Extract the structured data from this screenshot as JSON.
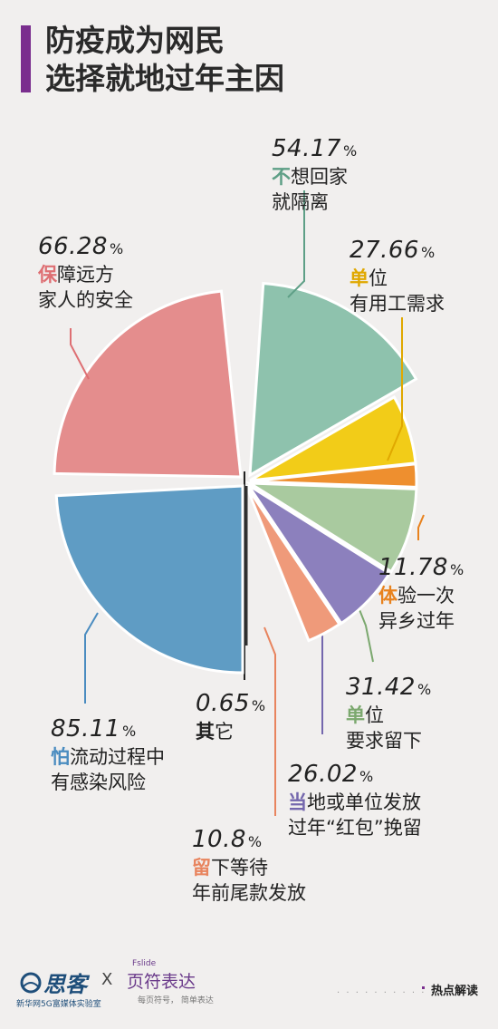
{
  "title_lines": [
    "防疫成为网民",
    "选择就地过年主因"
  ],
  "accent_color": "#7a2e8e",
  "chart_data": {
    "type": "pie",
    "title": "防疫成为网民选择就地过年主因",
    "unit": "%",
    "slices": [
      {
        "key": "s1",
        "value": "54.17",
        "num": 54.17,
        "lead": "不",
        "rest": "想回家",
        "line2": "就隔离",
        "color": "#8ec2ad",
        "lead_color": "#5e9f86"
      },
      {
        "key": "s2",
        "value": "27.66",
        "num": 27.66,
        "lead": "单",
        "rest": "位",
        "line2": "有用工需求",
        "color": "#f2cc18",
        "lead_color": "#e0a800"
      },
      {
        "key": "s3",
        "value": "11.78",
        "num": 11.78,
        "lead": "体",
        "rest": "验一次",
        "line2": "异乡过年",
        "color": "#ee8f2f",
        "lead_color": "#e8821e"
      },
      {
        "key": "s4",
        "value": "31.42",
        "num": 31.42,
        "lead": "单",
        "rest": "位",
        "line2": "要求留下",
        "color": "#a9ca9f",
        "lead_color": "#7ba86e"
      },
      {
        "key": "s5",
        "value": "26.02",
        "num": 26.02,
        "lead": "当",
        "rest": "地或单位发放",
        "line2": "过年“红包”挽留",
        "color": "#8c80bd",
        "lead_color": "#7467ad"
      },
      {
        "key": "s6",
        "value": "10.8",
        "num": 10.8,
        "lead": "留",
        "rest": "下等待",
        "line2": "年前尾款发放",
        "color": "#ef9a7a",
        "lead_color": "#e8845e"
      },
      {
        "key": "s7",
        "value": "0.65",
        "num": 0.65,
        "lead": "其",
        "rest": "它",
        "line2": "",
        "color": "#333333",
        "lead_color": "#222222"
      },
      {
        "key": "s8",
        "value": "85.11",
        "num": 85.11,
        "lead": "怕",
        "rest": "流动过程中",
        "line2": "有感染风险",
        "color": "#5f9cc4",
        "lead_color": "#4a8cc0"
      },
      {
        "key": "s9",
        "value": "66.28",
        "num": 66.28,
        "lead": "保",
        "rest": "障远方",
        "line2": "家人的安全",
        "color": "#e48d8d",
        "lead_color": "#de6f73"
      }
    ]
  },
  "footer": {
    "logo_left": "思客",
    "logo_left_sub": "新华网5G富媒体实验室",
    "separator": "X",
    "logo_right_top": "Fslide",
    "logo_right": "页符表达",
    "logo_right_sub": "每页符号， 简单表达",
    "section_tag": "热点解读"
  }
}
